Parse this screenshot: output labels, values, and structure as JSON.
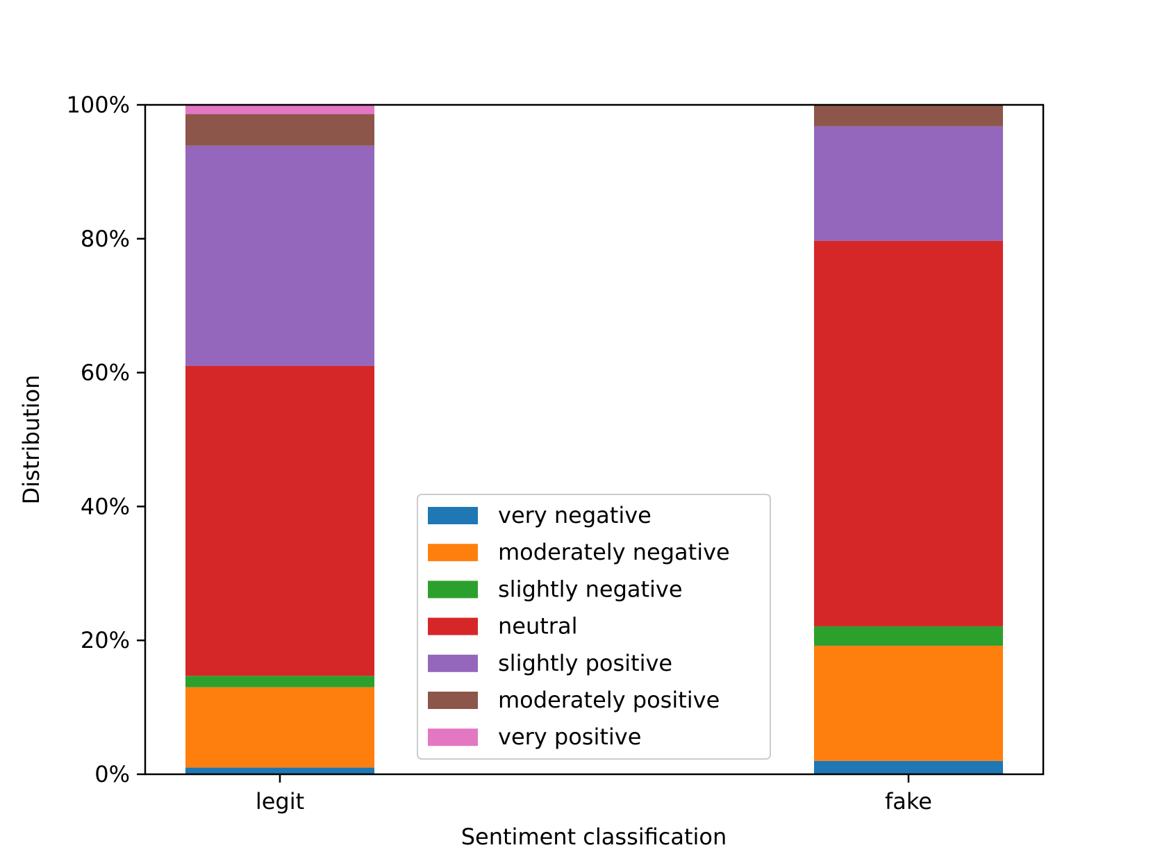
{
  "chart_data": {
    "type": "bar",
    "stacked": true,
    "title": "",
    "xlabel": "Sentiment classification",
    "ylabel": "Distribution",
    "categories": [
      "legit",
      "fake"
    ],
    "ylim": [
      0,
      100
    ],
    "yticks": [
      0,
      20,
      40,
      60,
      80,
      100
    ],
    "ytick_labels": [
      "0%",
      "20%",
      "40%",
      "60%",
      "80%",
      "100%"
    ],
    "grid": false,
    "legend_position": "bottom-center",
    "series": [
      {
        "name": "very negative",
        "color": "#1f77b4",
        "values": [
          1.0,
          2.0
        ]
      },
      {
        "name": "moderately negative",
        "color": "#ff7f0e",
        "values": [
          12.0,
          17.2
        ]
      },
      {
        "name": "slightly negative",
        "color": "#2ca02c",
        "values": [
          1.7,
          2.9
        ]
      },
      {
        "name": "neutral",
        "color": "#d62728",
        "values": [
          46.3,
          57.6
        ]
      },
      {
        "name": "slightly positive",
        "color": "#9467bd",
        "values": [
          32.9,
          17.1
        ]
      },
      {
        "name": "moderately positive",
        "color": "#8c564b",
        "values": [
          4.7,
          3.2
        ]
      },
      {
        "name": "very positive",
        "color": "#e377c2",
        "values": [
          1.4,
          0.0
        ]
      }
    ]
  }
}
